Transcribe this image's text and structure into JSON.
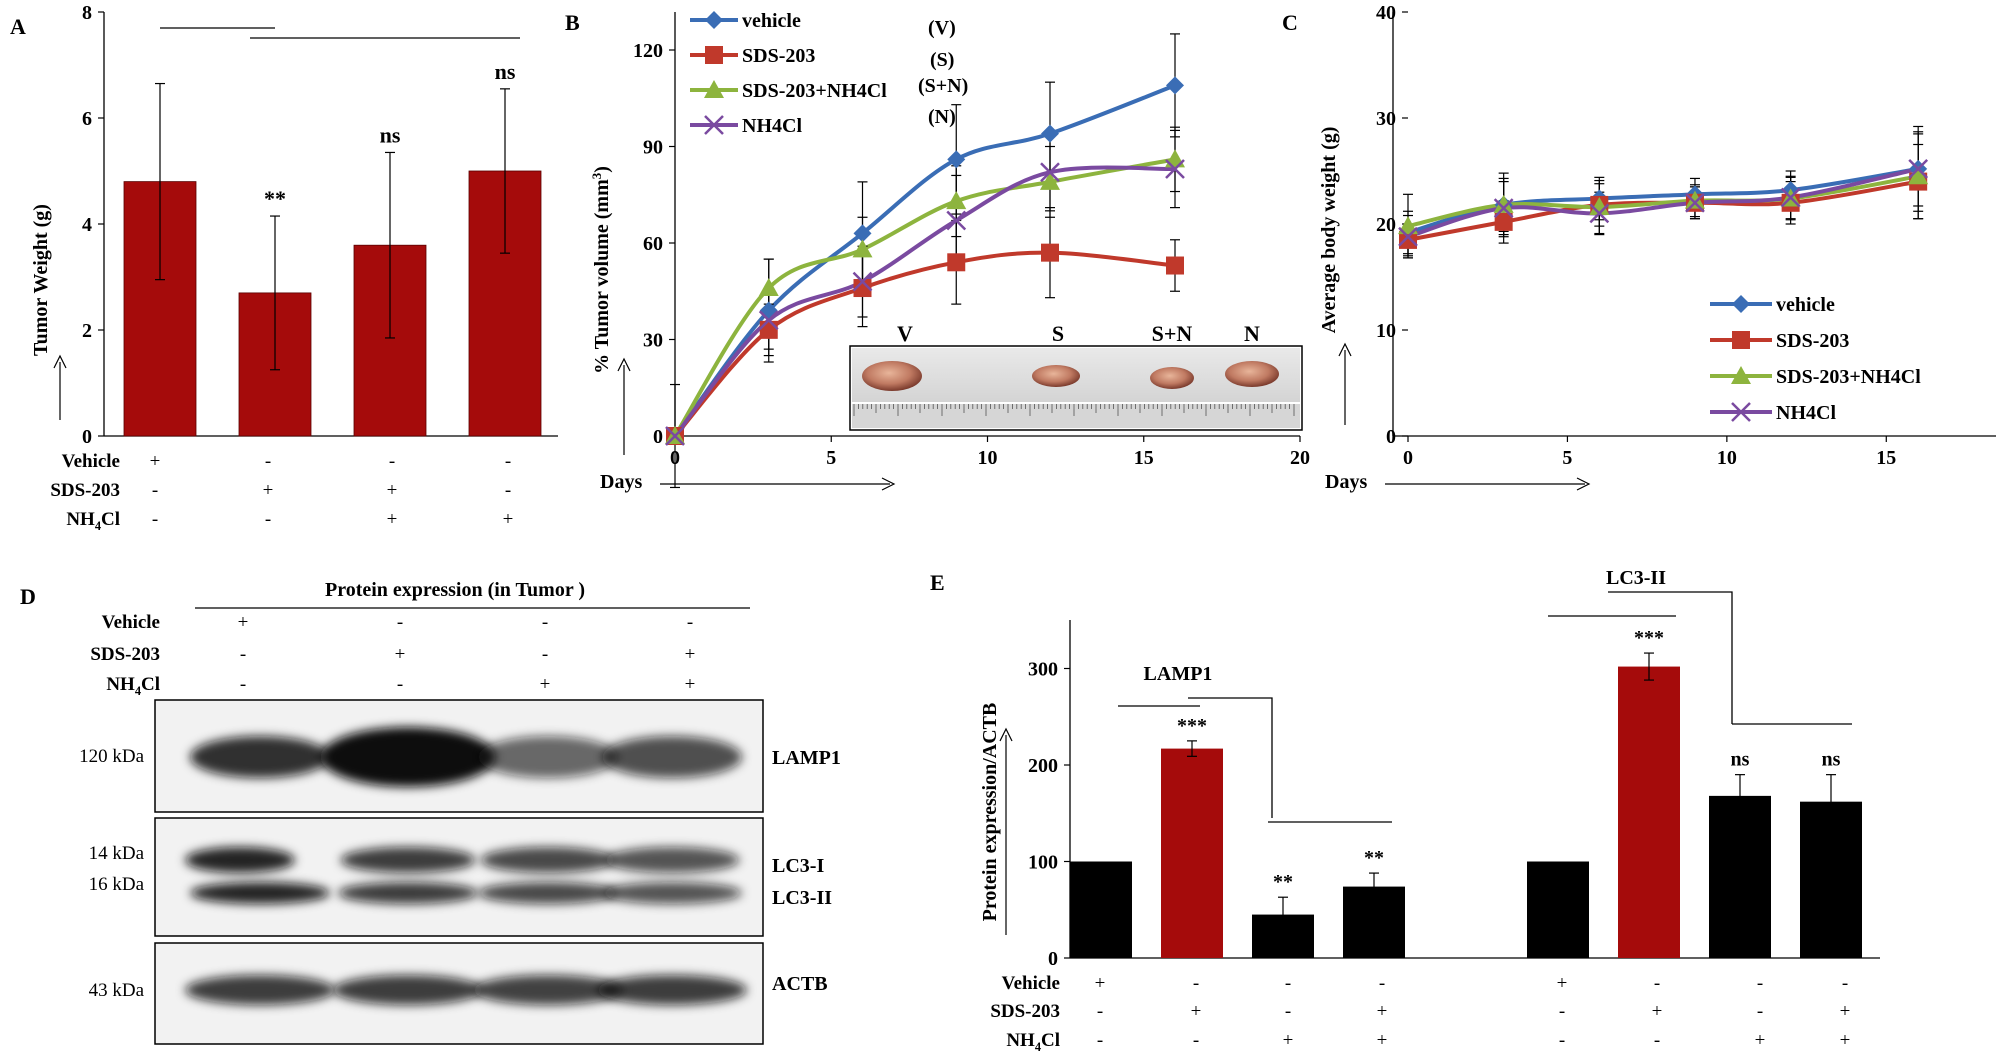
{
  "colors": {
    "red": "#A50B0B",
    "black": "#000000",
    "vehicle": "#3A6DB5",
    "sds": "#C0392B",
    "sdsnh4": "#8DB43E",
    "nh4": "#7A4AA0",
    "label_blue": "#1F4FB0",
    "label_red": "#B22222",
    "label_green": "#22A33A",
    "label_purple": "#6A2F9A"
  },
  "chart_data": [
    {
      "panel": "A",
      "type": "bar",
      "ylabel": "Tumor Weight (g)",
      "ylim": [
        0,
        8
      ],
      "yticks": [
        "0",
        "2",
        "4",
        "6",
        "8"
      ],
      "values": [
        4.8,
        2.7,
        3.6,
        5.0
      ],
      "errors": [
        1.85,
        1.45,
        1.75,
        1.55
      ],
      "significance": [
        "",
        "**",
        "ns",
        "ns"
      ],
      "conditions": {
        "rows": [
          {
            "label": "Vehicle",
            "marks": [
              "+",
              "-",
              "-",
              "-"
            ]
          },
          {
            "label": "SDS-203",
            "marks": [
              "-",
              "+",
              "+",
              "-"
            ]
          },
          {
            "label": "NH",
            "sub": "4",
            "tail": "Cl",
            "marks": [
              "-",
              "-",
              "+",
              "+"
            ]
          }
        ]
      }
    },
    {
      "panel": "B",
      "type": "line",
      "ylabel": "% Tumor volume (mm",
      "ylabel_sup": "3",
      "ylabel_tail": ")",
      "xlabel": "Days",
      "ylim": [
        0,
        120
      ],
      "xlim": [
        0,
        20
      ],
      "xticks": [
        "0",
        "5",
        "10",
        "15",
        "20"
      ],
      "yticks": [
        "0",
        "30",
        "60",
        "90",
        "120"
      ],
      "x": [
        0,
        3,
        6,
        9,
        12,
        16
      ],
      "series": [
        {
          "name": "vehicle",
          "values": [
            0,
            39,
            63,
            86,
            94,
            109
          ],
          "errors": [
            0,
            16,
            16,
            17,
            16,
            16
          ],
          "marker": "diamond"
        },
        {
          "name": "SDS-203",
          "values": [
            0,
            33,
            46,
            54,
            57,
            53
          ],
          "errors": [
            0,
            8,
            12,
            13,
            14,
            8
          ],
          "marker": "square"
        },
        {
          "name": "SDS-203+NH4Cl",
          "values": [
            0,
            46,
            58,
            73,
            79,
            86
          ],
          "errors": [
            0,
            9,
            10,
            11,
            11,
            10
          ],
          "marker": "triangle"
        },
        {
          "name": "NH4Cl",
          "values": [
            0,
            36,
            48,
            67,
            82,
            83
          ],
          "errors": [
            16,
            9,
            11,
            14,
            12,
            12
          ],
          "marker": "x"
        }
      ],
      "legend_tags": [
        "(V)",
        "(S)",
        "(S+N)",
        "(N)"
      ],
      "inset_labels": [
        "V",
        "S",
        "S+N",
        "N"
      ]
    },
    {
      "panel": "C",
      "type": "line",
      "ylabel": "Average body weight (g)",
      "xlabel": "Days",
      "ylim": [
        0,
        40
      ],
      "xlim": [
        0,
        17.5
      ],
      "xticks": [
        "0",
        "5",
        "10",
        "15"
      ],
      "yticks": [
        "0",
        "10",
        "20",
        "30",
        "40"
      ],
      "x": [
        0,
        3,
        6,
        9,
        12,
        16
      ],
      "series": [
        {
          "name": "vehicle",
          "values": [
            19.2,
            21.8,
            22.4,
            22.8,
            23.2,
            25.2
          ],
          "errors": [
            2,
            2.5,
            2,
            1.5,
            1.8,
            4
          ],
          "marker": "diamond"
        },
        {
          "name": "SDS-203",
          "values": [
            18.5,
            20.2,
            21.8,
            22.0,
            22.0,
            24.0
          ],
          "errors": [
            1.5,
            2,
            2,
            1.5,
            2,
            3.5
          ],
          "marker": "square"
        },
        {
          "name": "SDS-203+NH4Cl",
          "values": [
            19.8,
            21.8,
            21.6,
            22.2,
            22.4,
            24.5
          ],
          "errors": [
            3,
            3,
            2.5,
            1.5,
            2,
            4
          ],
          "marker": "triangle"
        },
        {
          "name": "NH4Cl",
          "values": [
            18.8,
            21.5,
            21.0,
            22.0,
            22.5,
            25.2
          ],
          "errors": [
            2,
            2.5,
            2,
            1.5,
            2,
            3.5
          ],
          "marker": "x"
        }
      ]
    },
    {
      "panel": "E",
      "type": "bar",
      "ylabel": "Protein expression/ACTB",
      "ylim": [
        0,
        350
      ],
      "yticks": [
        "0",
        "100",
        "200",
        "300"
      ],
      "groups": [
        {
          "name": "LAMP1",
          "values": [
            100,
            217,
            45,
            74
          ],
          "errors": [
            0,
            8,
            18,
            14
          ],
          "significance": [
            "",
            "***",
            "**",
            "**"
          ]
        },
        {
          "name": "LC3-II",
          "values": [
            100,
            302,
            168,
            162
          ],
          "errors": [
            0,
            14,
            22,
            28
          ],
          "significance": [
            "",
            "***",
            "ns",
            "ns"
          ]
        }
      ],
      "bar_colors": [
        "black",
        "red",
        "black",
        "black"
      ],
      "conditions": {
        "rows": [
          {
            "label": "Vehicle",
            "marks": [
              "+",
              "-",
              "-",
              "-",
              "+",
              "-",
              "-",
              "-"
            ]
          },
          {
            "label": "SDS-203",
            "marks": [
              "-",
              "+",
              "-",
              "+",
              "-",
              "+",
              "-",
              "+"
            ]
          },
          {
            "label": "NH",
            "sub": "4",
            "tail": "Cl",
            "marks": [
              "-",
              "-",
              "+",
              "+",
              "-",
              "-",
              "+",
              "+"
            ]
          }
        ]
      }
    }
  ],
  "panel_letters": [
    "A",
    "B",
    "C",
    "D",
    "E"
  ],
  "blot": {
    "title": "Protein expression (in Tumor )",
    "conditions": {
      "rows": [
        {
          "label": "Vehicle",
          "marks": [
            "+",
            "-",
            "-",
            "-"
          ]
        },
        {
          "label": "SDS-203",
          "marks": [
            "-",
            "+",
            "-",
            "+"
          ]
        },
        {
          "label": "NH",
          "sub": "4",
          "tail": "Cl",
          "marks": [
            "-",
            "-",
            "+",
            "+"
          ]
        }
      ]
    },
    "sizes": [
      "120 kDa",
      "14 kDa",
      "16 kDa",
      "43 kDa"
    ],
    "proteins": [
      "LAMP1",
      "LC3-I",
      "LC3-II",
      "ACTB"
    ],
    "lamp1_intensity": [
      0.85,
      1.0,
      0.62,
      0.72
    ],
    "lc3_intensity": [
      0.9,
      0.8,
      0.75,
      0.7
    ],
    "actb_intensity": [
      0.8,
      0.8,
      0.78,
      0.8
    ]
  }
}
